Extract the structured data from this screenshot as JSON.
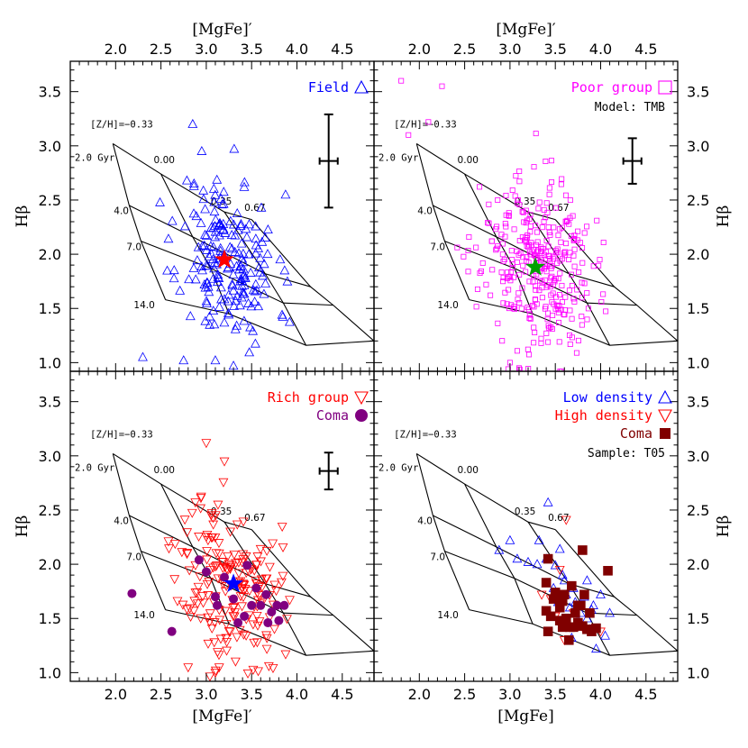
{
  "chart_data": [
    {
      "type": "scatter",
      "panel": "top-left",
      "x_range": [
        1.5,
        4.85
      ],
      "y_range": [
        0.92,
        3.78
      ],
      "xlabel_top": "[MgFe]′",
      "ylabel_left": "Hβ",
      "x_ticks": [
        "2.0",
        "2.5",
        "3.0",
        "3.5",
        "4.0",
        "4.5"
      ],
      "y_ticks": [
        "1.0",
        "1.5",
        "2.0",
        "2.5",
        "3.0",
        "3.5"
      ],
      "legend": [
        {
          "label": "Field",
          "marker": "triangle-open",
          "color": "#0000ff"
        }
      ],
      "model_grid": true,
      "grid_labels": {
        "zh0": "[Z/H]=−0.33",
        "zh1": "0.00",
        "zh2": "0.35",
        "zh3": "0.67",
        "age0": "2.0 Gyr",
        "age1": "4.0",
        "age2": "7.0",
        "age3": "14.0"
      },
      "error_bar": {
        "x": 4.35,
        "y": 2.86,
        "yerr_lo": 0.43,
        "yerr_hi": 0.43,
        "xerr": 0.1
      },
      "median_star": {
        "x": 3.2,
        "y": 1.95,
        "color": "#ff0000"
      },
      "series": [
        {
          "name": "Field",
          "marker": "triangle-open",
          "color": "#0000ff",
          "n": 190,
          "x_mean": 3.25,
          "x_sd": 0.27,
          "y_mean": 1.95,
          "y_sd": 0.38,
          "seed": 11,
          "slope": -0.25,
          "extra_points": [
            [
              2.85,
              3.2
            ],
            [
              2.95,
              2.95
            ],
            [
              2.3,
              1.05
            ],
            [
              3.1,
              1.02
            ],
            [
              3.3,
              0.97
            ],
            [
              2.75,
              1.02
            ]
          ]
        }
      ]
    },
    {
      "type": "scatter",
      "panel": "top-right",
      "x_range": [
        1.5,
        4.85
      ],
      "y_range": [
        0.92,
        3.78
      ],
      "xlabel_top": "[MgFe]′",
      "ylabel_right": "Hβ",
      "x_ticks": [
        "2.0",
        "2.5",
        "3.0",
        "3.5",
        "4.0",
        "4.5"
      ],
      "y_ticks": [
        "1.0",
        "1.5",
        "2.0",
        "2.5",
        "3.0",
        "3.5"
      ],
      "legend": [
        {
          "label": "Poor group",
          "marker": "square-open",
          "color": "#ff00ff"
        }
      ],
      "annotation": "Model: TMB",
      "model_grid": true,
      "grid_labels": {
        "zh0": "[Z/H]=−0.33",
        "zh1": "0.00",
        "zh2": "0.35",
        "zh3": "0.67",
        "age0": "2.0 Gyr",
        "age1": "4.0",
        "age2": "7.0",
        "age3": "14.0"
      },
      "error_bar": {
        "x": 4.35,
        "y": 2.86,
        "yerr_lo": 0.21,
        "yerr_hi": 0.21,
        "xerr": 0.1
      },
      "median_star": {
        "x": 3.28,
        "y": 1.88,
        "color": "#00a000"
      },
      "series": [
        {
          "name": "Poor group",
          "marker": "square-open",
          "color": "#ff00ff",
          "n": 330,
          "x_mean": 3.3,
          "x_sd": 0.3,
          "y_mean": 1.88,
          "y_sd": 0.4,
          "seed": 23,
          "slope": -0.25,
          "extra_points": [
            [
              1.8,
              3.6
            ],
            [
              2.25,
              3.55
            ],
            [
              1.88,
              3.1
            ],
            [
              2.1,
              3.22
            ],
            [
              3.0,
              1.0
            ],
            [
              3.1,
              0.95
            ]
          ]
        }
      ]
    },
    {
      "type": "scatter",
      "panel": "bottom-left",
      "x_range": [
        1.5,
        4.85
      ],
      "y_range": [
        0.92,
        3.78
      ],
      "xlabel_bottom": "[MgFe]′",
      "ylabel_left": "Hβ",
      "x_ticks": [
        "2.0",
        "2.5",
        "3.0",
        "3.5",
        "4.0",
        "4.5"
      ],
      "y_ticks": [
        "1.0",
        "1.5",
        "2.0",
        "2.5",
        "3.0",
        "3.5"
      ],
      "legend": [
        {
          "label": "Rich group",
          "marker": "triangle-down-open",
          "color": "#ff0000"
        },
        {
          "label": "Coma",
          "marker": "circle-filled",
          "color": "#800080"
        }
      ],
      "model_grid": true,
      "grid_labels": {
        "zh0": "[Z/H]=−0.33",
        "zh1": "0.00",
        "zh2": "0.35",
        "zh3": "0.67",
        "age0": "2.0 Gyr",
        "age1": "4.0",
        "age2": "7.0",
        "age3": "14.0"
      },
      "error_bar": {
        "x": 4.35,
        "y": 2.86,
        "yerr_lo": 0.17,
        "yerr_hi": 0.17,
        "xerr": 0.1
      },
      "median_star": {
        "x": 3.3,
        "y": 1.82,
        "color": "#0000ff"
      },
      "series": [
        {
          "name": "Rich group",
          "marker": "triangle-down-open",
          "color": "#ff0000",
          "n": 190,
          "x_mean": 3.25,
          "x_sd": 0.28,
          "y_mean": 1.82,
          "y_sd": 0.38,
          "seed": 37,
          "slope": -0.25,
          "extra_points": [
            [
              3.0,
              3.12
            ],
            [
              3.2,
              2.95
            ],
            [
              2.8,
              1.05
            ],
            [
              3.1,
              1.0
            ]
          ]
        },
        {
          "name": "Coma",
          "marker": "circle-filled",
          "color": "#800080",
          "points": [
            [
              2.18,
              1.73
            ],
            [
              2.62,
              1.38
            ],
            [
              2.92,
              2.04
            ],
            [
              3.0,
              1.93
            ],
            [
              3.1,
              1.7
            ],
            [
              3.2,
              1.88
            ],
            [
              3.3,
              1.68
            ],
            [
              3.42,
              1.52
            ],
            [
              3.5,
              1.62
            ],
            [
              3.55,
              1.78
            ],
            [
              3.6,
              1.62
            ],
            [
              3.66,
              1.72
            ],
            [
              3.72,
              1.56
            ],
            [
              3.78,
              1.62
            ],
            [
              3.86,
              1.62
            ],
            [
              3.45,
              1.99
            ],
            [
              3.68,
              1.46
            ],
            [
              3.12,
              1.62
            ],
            [
              3.35,
              1.46
            ],
            [
              3.8,
              1.48
            ]
          ]
        }
      ]
    },
    {
      "type": "scatter",
      "panel": "bottom-right",
      "x_range": [
        1.5,
        4.85
      ],
      "y_range": [
        0.92,
        3.78
      ],
      "xlabel_bottom": "[MgFe]",
      "ylabel_right": "Hβ",
      "x_ticks": [
        "2.0",
        "2.5",
        "3.0",
        "3.5",
        "4.0",
        "4.5"
      ],
      "y_ticks": [
        "1.0",
        "1.5",
        "2.0",
        "2.5",
        "3.0",
        "3.5"
      ],
      "legend": [
        {
          "label": "Low density",
          "marker": "triangle-open",
          "color": "#0000ff"
        },
        {
          "label": "High density",
          "marker": "triangle-down-open",
          "color": "#ff0000"
        },
        {
          "label": "Coma",
          "marker": "square-filled",
          "color": "#800000"
        }
      ],
      "annotation": "Sample: T05",
      "model_grid": true,
      "grid_labels": {
        "zh0": "[Z/H]=−0.33",
        "zh1": "0.00",
        "zh2": "0.35",
        "zh3": "0.67",
        "age0": "2.0 Gyr",
        "age1": "4.0",
        "age2": "7.0",
        "age3": "14.0"
      },
      "series": [
        {
          "name": "Low density",
          "marker": "triangle-open",
          "color": "#0000ff",
          "points": [
            [
              3.42,
              2.57
            ],
            [
              2.88,
              2.13
            ],
            [
              3.0,
              2.22
            ],
            [
              3.08,
              2.05
            ],
            [
              3.2,
              2.02
            ],
            [
              3.32,
              2.22
            ],
            [
              3.4,
              2.05
            ],
            [
              3.5,
              1.99
            ],
            [
              3.55,
              2.14
            ],
            [
              3.6,
              1.85
            ],
            [
              3.62,
              1.72
            ],
            [
              3.66,
              1.6
            ],
            [
              3.7,
              1.78
            ],
            [
              3.72,
              1.65
            ],
            [
              3.78,
              1.55
            ],
            [
              3.82,
              1.7
            ],
            [
              3.85,
              1.5
            ],
            [
              3.88,
              1.4
            ],
            [
              3.9,
              1.58
            ],
            [
              3.95,
              1.22
            ],
            [
              4.05,
              1.34
            ],
            [
              3.75,
              1.48
            ],
            [
              3.68,
              1.32
            ],
            [
              3.58,
              1.9
            ],
            [
              3.48,
              1.78
            ],
            [
              3.92,
              1.62
            ],
            [
              4.1,
              1.55
            ],
            [
              3.3,
              2.0
            ],
            [
              3.62,
              1.45
            ],
            [
              3.85,
              1.85
            ],
            [
              4.0,
              1.72
            ],
            [
              3.53,
              1.65
            ]
          ]
        },
        {
          "name": "High density",
          "marker": "triangle-down-open",
          "color": "#ff0000",
          "points": [
            [
              3.62,
              2.41
            ],
            [
              3.35,
              1.72
            ],
            [
              3.5,
              1.52
            ],
            [
              3.45,
              1.68
            ],
            [
              3.6,
              1.3
            ],
            [
              3.7,
              1.55
            ],
            [
              3.8,
              1.42
            ],
            [
              4.0,
              1.38
            ],
            [
              3.55,
              1.95
            ]
          ]
        },
        {
          "name": "Coma",
          "marker": "square-filled",
          "color": "#800000",
          "points": [
            [
              3.42,
              2.05
            ],
            [
              3.8,
              2.13
            ],
            [
              4.08,
              1.94
            ],
            [
              3.4,
              1.83
            ],
            [
              3.45,
              1.52
            ],
            [
              3.5,
              1.74
            ],
            [
              3.55,
              1.6
            ],
            [
              3.58,
              1.66
            ],
            [
              3.62,
              1.5
            ],
            [
              3.66,
              1.42
            ],
            [
              3.68,
              1.8
            ],
            [
              3.72,
              1.55
            ],
            [
              3.75,
              1.46
            ],
            [
              3.8,
              1.43
            ],
            [
              3.85,
              1.4
            ],
            [
              3.9,
              1.38
            ],
            [
              3.95,
              1.41
            ],
            [
              3.6,
              1.72
            ],
            [
              3.4,
              1.57
            ],
            [
              3.42,
              1.38
            ],
            [
              3.55,
              1.48
            ],
            [
              3.65,
              1.3
            ],
            [
              3.7,
              1.42
            ],
            [
              3.78,
              1.62
            ],
            [
              3.82,
              1.72
            ],
            [
              3.88,
              1.55
            ],
            [
              3.58,
              1.42
            ],
            [
              3.75,
              1.62
            ],
            [
              3.48,
              1.68
            ]
          ]
        }
      ]
    }
  ]
}
